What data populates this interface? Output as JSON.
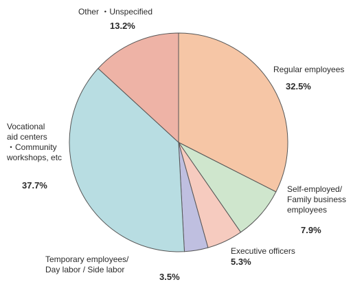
{
  "chart_data": {
    "type": "pie",
    "slices": [
      {
        "name": "Regular employees",
        "value": 32.5,
        "value_label": "32.5%",
        "color": "#f6c6a6"
      },
      {
        "name": "Self-employed/\nFamily business\nemployees",
        "value": 7.9,
        "value_label": "7.9%",
        "color": "#cfe6cd"
      },
      {
        "name": "Executive officers",
        "value": 5.3,
        "value_label": "5.3%",
        "color": "#f6cbbf"
      },
      {
        "name": "Temporary employees/\nDay labor / Side labor",
        "value": 3.5,
        "value_label": "3.5%",
        "color": "#bfbfe0"
      },
      {
        "name": "Vocational\naid centers\n・Community\nworkshops, etc",
        "value": 37.7,
        "value_label": "37.7%",
        "color": "#b8dde2"
      },
      {
        "name": "Other ・Unspecified",
        "value": 13.2,
        "value_label": "13.2%",
        "color": "#eeb3a6"
      }
    ],
    "start_angle_deg": 0,
    "direction": "clockwise",
    "slice_outline_color": "#555555"
  }
}
